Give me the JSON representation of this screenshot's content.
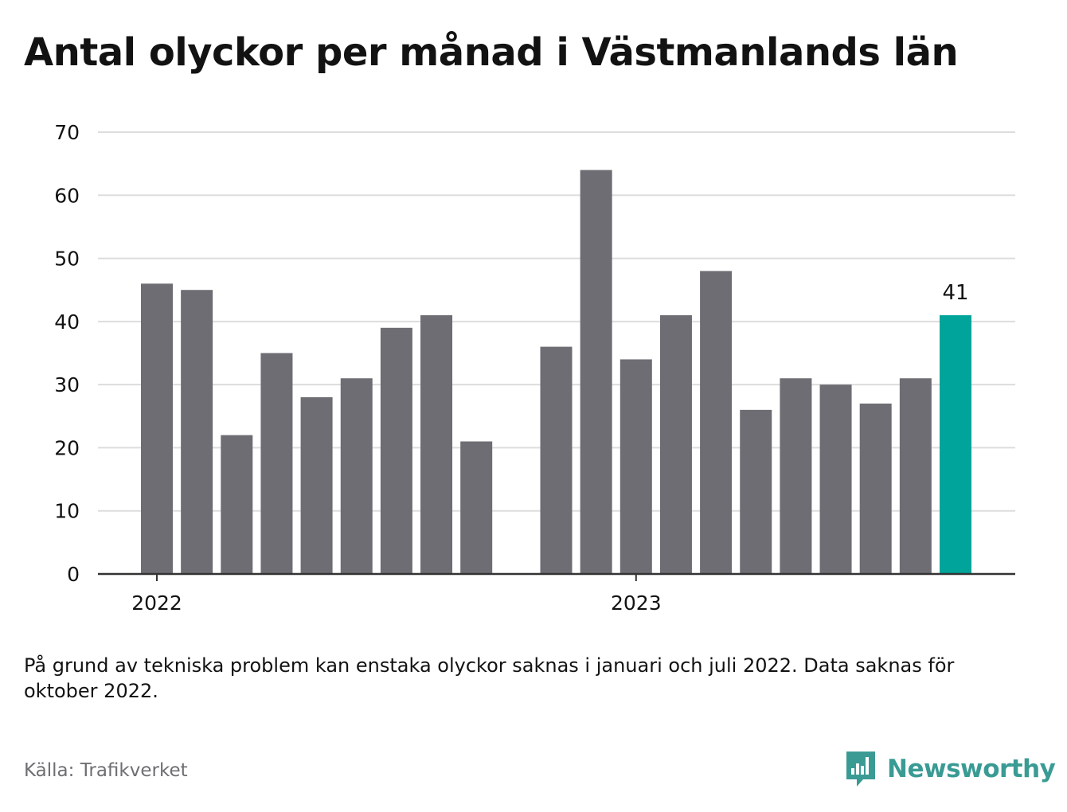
{
  "title": "Antal olyckor per månad i Västmanlands län",
  "note": "På grund av tekniska problem kan enstaka olyckor saknas i januari och juli 2022. Data saknas för oktober 2022.",
  "source": "Källa: Trafikverket",
  "brand": {
    "name": "Newsworthy",
    "icon": "bar-chart-speech-bubble-icon"
  },
  "colors": {
    "bar": "#6e6d73",
    "highlight": "#00a49a",
    "grid": "#dddddd",
    "axis": "#333333",
    "text": "#121212",
    "muted": "#6e6e73",
    "brand": "#3a9b94"
  },
  "chart_data": {
    "type": "bar",
    "title": "Antal olyckor per månad i Västmanlands län",
    "xlabel": "",
    "ylabel": "",
    "x": [
      "2022-01",
      "2022-02",
      "2022-03",
      "2022-04",
      "2022-05",
      "2022-06",
      "2022-07",
      "2022-08",
      "2022-09",
      "2022-10",
      "2022-11",
      "2022-12",
      "2023-01",
      "2023-02",
      "2023-03",
      "2023-04",
      "2023-05",
      "2023-06",
      "2023-07",
      "2023-08",
      "2023-09"
    ],
    "values": [
      46,
      45,
      22,
      35,
      28,
      31,
      39,
      41,
      21,
      null,
      36,
      64,
      34,
      41,
      48,
      26,
      31,
      30,
      27,
      31,
      41
    ],
    "highlight_index": 20,
    "highlight_label": "41",
    "x_tick_labels": [
      {
        "x": "2022-01",
        "label": "2022"
      },
      {
        "x": "2023-01",
        "label": "2023"
      }
    ],
    "y_ticks": [
      0,
      10,
      20,
      30,
      40,
      50,
      60,
      70
    ],
    "ylim": [
      0,
      70
    ],
    "grid": true,
    "legend": false
  }
}
